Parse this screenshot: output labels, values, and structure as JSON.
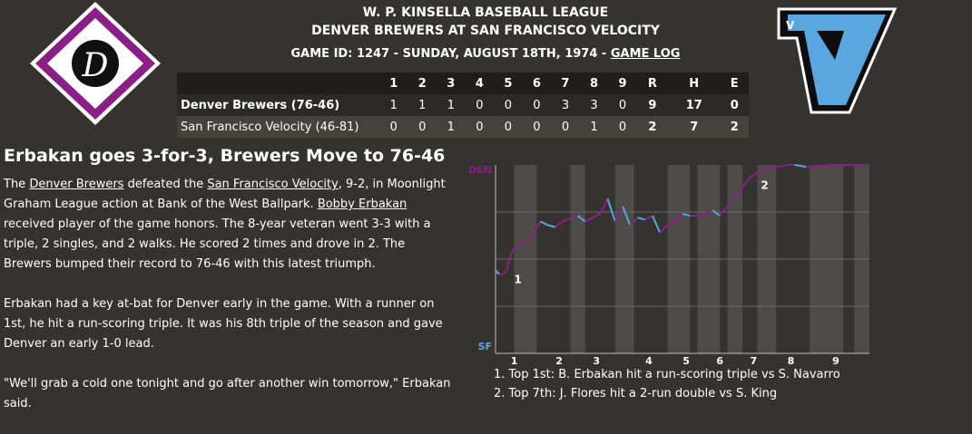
{
  "header": {
    "league": "W. P. KINSELLA BASEBALL LEAGUE",
    "matchup": "DENVER BREWERS AT SAN FRANCISCO VELOCITY",
    "game_info": "GAME ID: 1247 - SUNDAY, AUGUST 18TH, 1974 - ",
    "game_log_link": "GAME LOG"
  },
  "logos": {
    "home_letter": "V",
    "away_letter": "D"
  },
  "colors": {
    "background": "#35332f",
    "away_primary": "#8b1f87",
    "home_primary": "#5aa6e0"
  },
  "box_score": {
    "columns": [
      "",
      "1",
      "2",
      "3",
      "4",
      "5",
      "6",
      "7",
      "8",
      "9",
      "R",
      "H",
      "E"
    ],
    "rows": [
      {
        "team": "Denver Brewers (76-46)",
        "innings": [
          "1",
          "1",
          "1",
          "0",
          "0",
          "0",
          "3",
          "3",
          "0"
        ],
        "r": "9",
        "h": "17",
        "e": "0"
      },
      {
        "team": "San Francisco Velocity (46-81)",
        "innings": [
          "0",
          "0",
          "1",
          "0",
          "0",
          "0",
          "0",
          "1",
          "0"
        ],
        "r": "2",
        "h": "7",
        "e": "2"
      }
    ]
  },
  "story": {
    "headline": "Erbakan goes 3-for-3, Brewers Move to 76-46",
    "p1": {
      "t1": "The ",
      "link1": "Denver Brewers",
      "t2": " defeated the ",
      "link2": "San Francisco Velocity",
      "t3": ", 9-2, in Moonlight Graham League action at Bank of the West Ballpark. ",
      "link3": "Bobby Erbakan",
      "t4": " received player of the game honors. The 8-year veteran went 3-3 with a triple, 2 singles, and 2 walks. He scored 2 times and drove in 2. The Brewers bumped their record to 76-46 with this latest triumph."
    },
    "p2": "Erbakan had a key at-bat for Denver early in the game. With a runner on 1st, he hit a run-scoring triple. It was his 8th triple of the season and gave Denver an early 1-0 lead.",
    "p3": "\"We'll grab a cold one tonight and go after another win tomorrow,\" Erbakan said."
  },
  "chart_data": {
    "type": "line",
    "title": "",
    "top_label": "DEN",
    "bottom_label": "SF",
    "top_color": "#8b1f87",
    "bottom_color": "#5aa6e0",
    "ylim": [
      0,
      1
    ],
    "innings": [
      "1",
      "2",
      "3",
      "4",
      "5",
      "6",
      "7",
      "8",
      "9"
    ],
    "x": [
      0.0,
      0.01,
      0.02,
      0.03,
      0.04,
      0.05,
      0.07,
      0.09,
      0.1,
      0.12,
      0.14,
      0.16,
      0.18,
      0.2,
      0.22,
      0.24,
      0.26,
      0.28,
      0.3,
      0.32,
      0.34,
      0.36,
      0.38,
      0.4,
      0.42,
      0.44,
      0.46,
      0.48,
      0.5,
      0.52,
      0.54,
      0.56,
      0.58,
      0.6,
      0.62,
      0.64,
      0.66,
      0.68,
      0.7,
      0.72,
      0.74,
      0.76,
      0.78,
      0.8,
      0.83,
      0.86,
      0.9,
      0.94,
      0.97,
      1.0
    ],
    "y": [
      0.44,
      0.42,
      0.42,
      0.44,
      0.52,
      0.56,
      0.58,
      0.6,
      0.63,
      0.7,
      0.68,
      0.67,
      0.7,
      0.72,
      0.73,
      0.7,
      0.72,
      0.74,
      0.82,
      0.7,
      0.78,
      0.68,
      0.72,
      0.71,
      0.73,
      0.64,
      0.68,
      0.7,
      0.74,
      0.73,
      0.73,
      0.74,
      0.76,
      0.73,
      0.78,
      0.83,
      0.88,
      0.93,
      0.96,
      0.98,
      0.99,
      0.99,
      1.0,
      1.0,
      0.99,
      0.99,
      1.0,
      1.0,
      1.0,
      1.0
    ],
    "inning_bands": [
      [
        0.05,
        0.11
      ],
      [
        0.2,
        0.24
      ],
      [
        0.32,
        0.37
      ],
      [
        0.46,
        0.52
      ],
      [
        0.54,
        0.6
      ],
      [
        0.62,
        0.66
      ],
      [
        0.7,
        0.75
      ],
      [
        0.84,
        0.93
      ],
      [
        0.96,
        1.0
      ]
    ],
    "inning_label_pos": [
      0.05,
      0.17,
      0.27,
      0.41,
      0.51,
      0.6,
      0.69,
      0.79,
      0.91
    ],
    "markers": [
      {
        "label": "1",
        "x": 0.04,
        "y": 0.44
      },
      {
        "label": "2",
        "x": 0.7,
        "y": 0.94
      }
    ],
    "notes": [
      "1. Top 1st: B. Erbakan hit a run-scoring triple vs S. Navarro",
      "2. Top 7th: J. Flores hit a 2-run double vs S. King"
    ]
  }
}
